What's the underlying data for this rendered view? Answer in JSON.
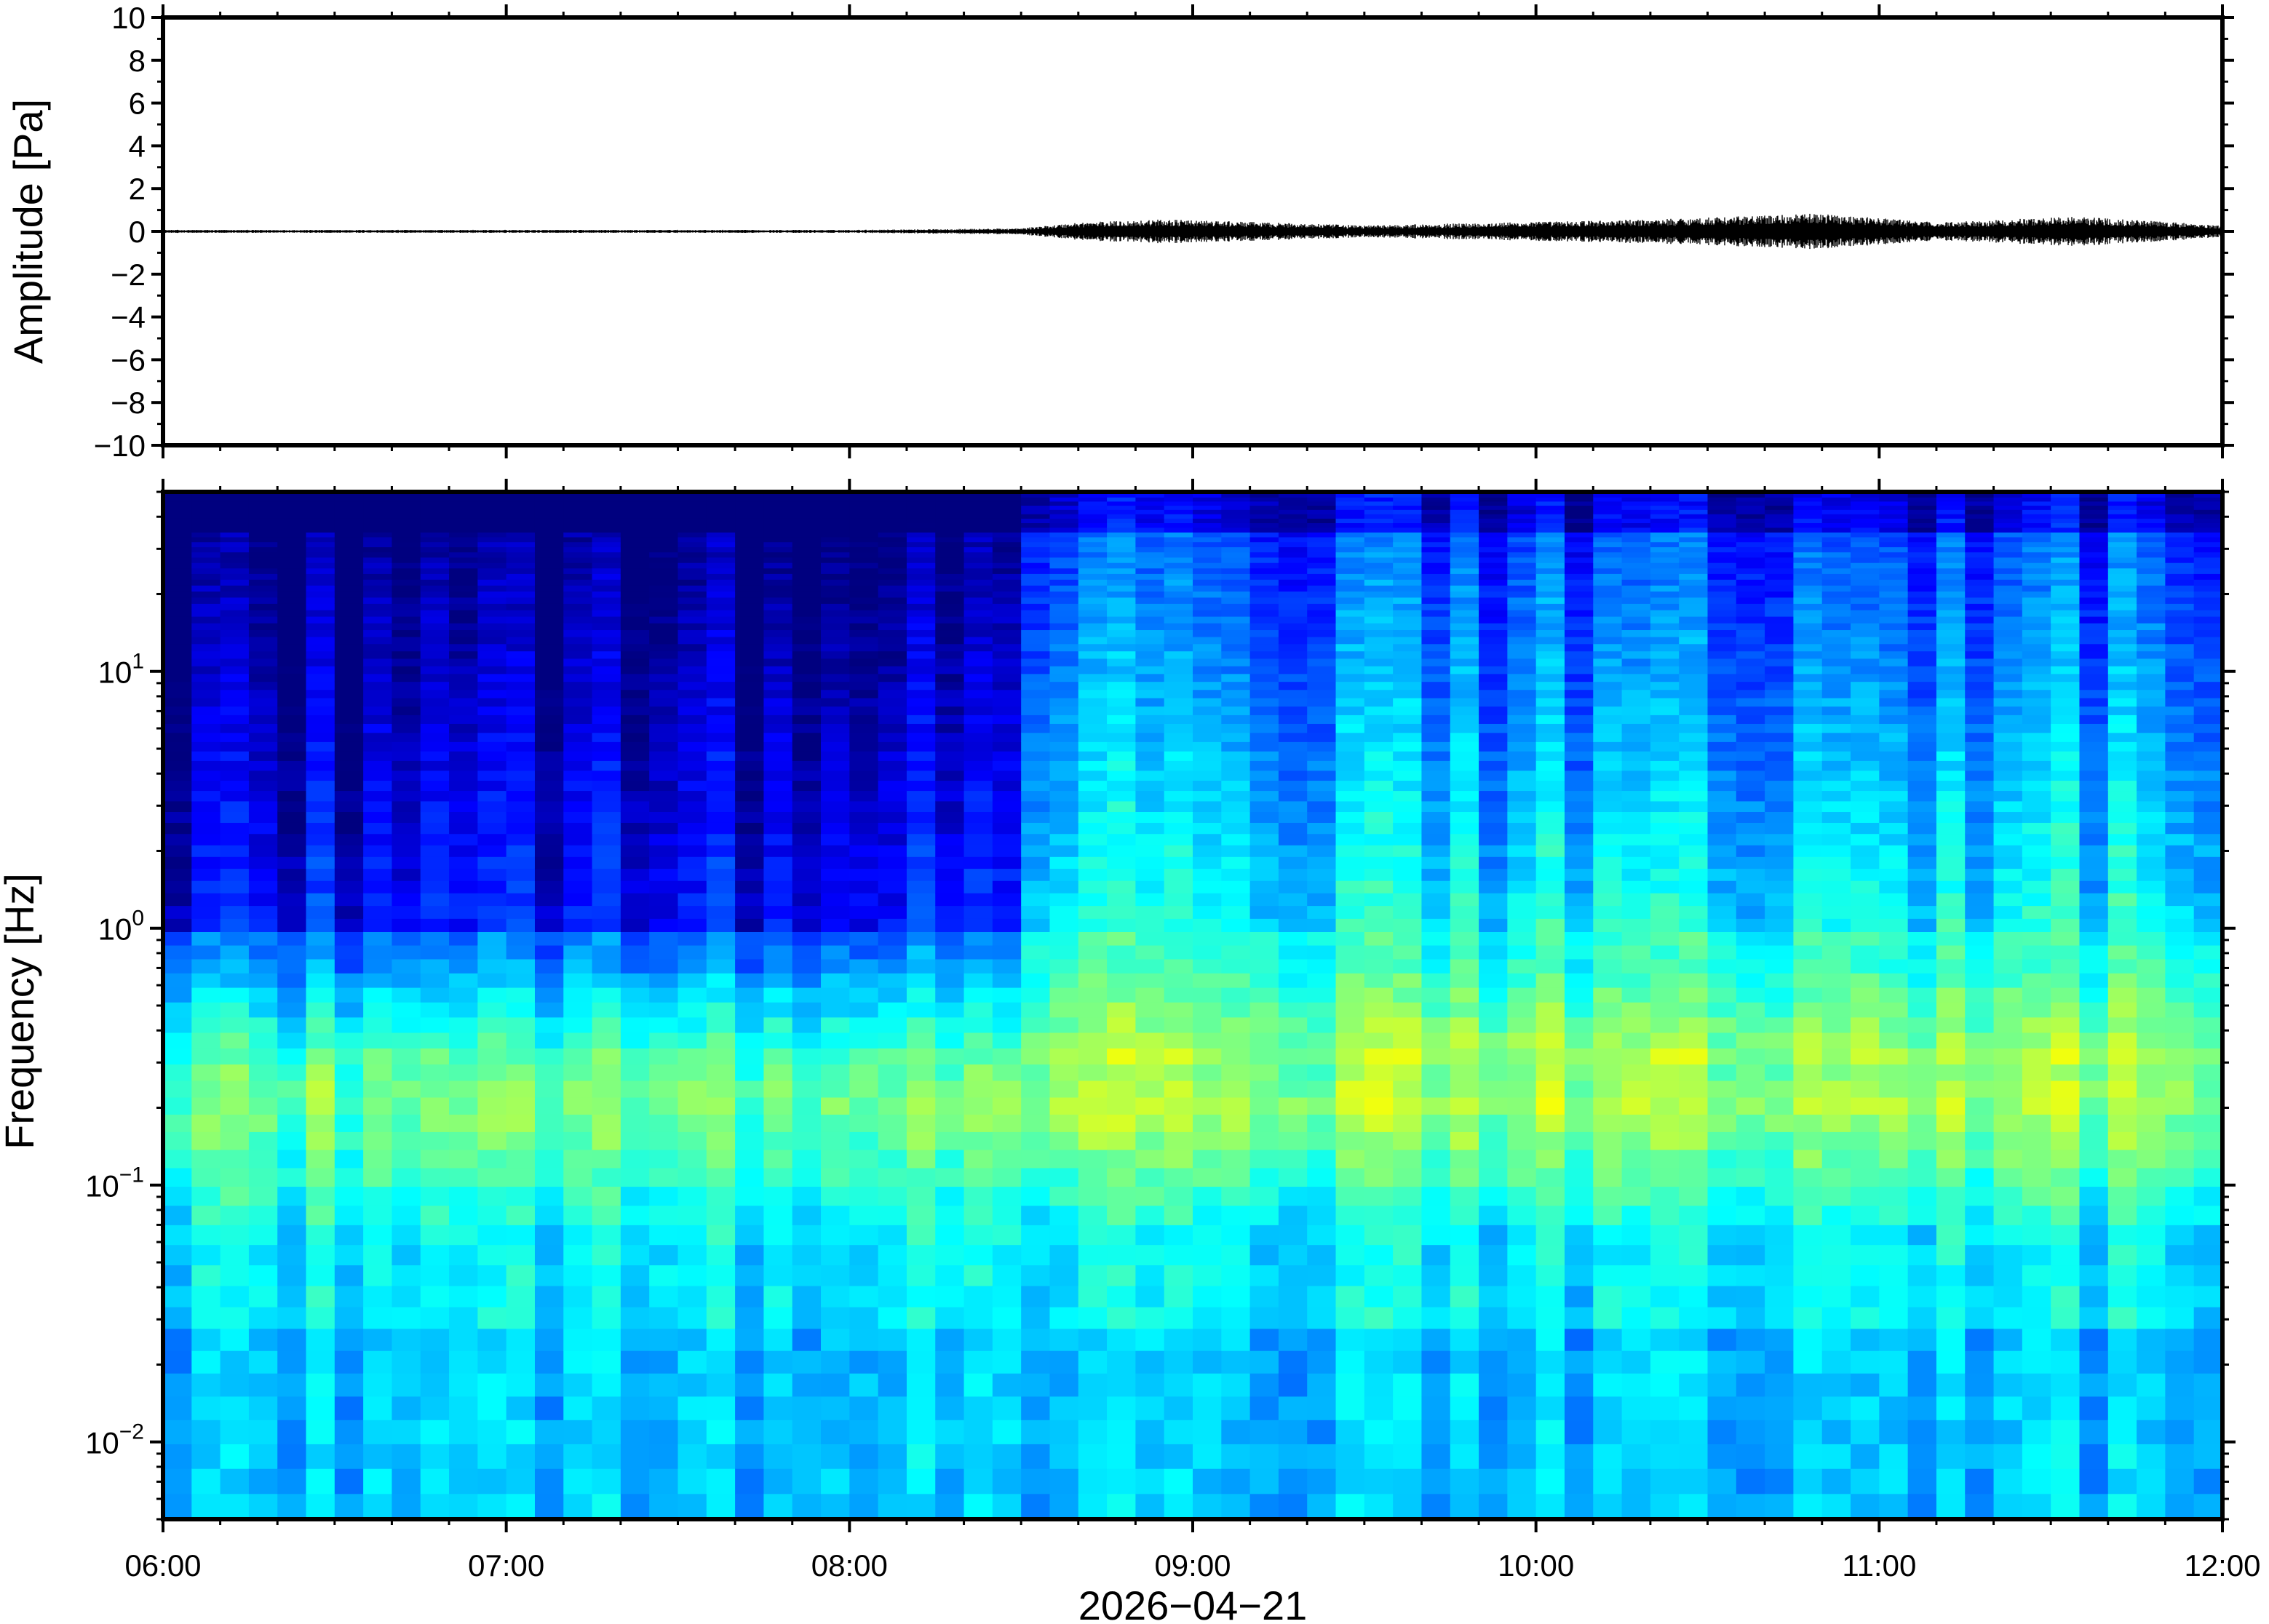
{
  "chart_data": [
    {
      "type": "line",
      "panel": "waveform",
      "ylabel": "Amplitude [Pa]",
      "ylim": [
        -10,
        10
      ],
      "y_ticks": [
        "10",
        "8",
        "6",
        "4",
        "2",
        "0",
        "−2",
        "−4",
        "−6",
        "−8",
        "−10"
      ],
      "x_range": [
        "06:00",
        "12:00"
      ],
      "grid": false,
      "series": [
        {
          "color": "#000000",
          "envelope_pa": [
            {
              "t": "06:00",
              "amp": 0.05
            },
            {
              "t": "07:00",
              "amp": 0.05
            },
            {
              "t": "08:00",
              "amp": 0.05
            },
            {
              "t": "08:30",
              "amp": 0.1
            },
            {
              "t": "08:40",
              "amp": 0.3
            },
            {
              "t": "08:55",
              "amp": 0.4
            },
            {
              "t": "09:30",
              "amp": 0.2
            },
            {
              "t": "10:20",
              "amp": 0.4
            },
            {
              "t": "10:35",
              "amp": 0.5
            },
            {
              "t": "10:50",
              "amp": 0.6
            },
            {
              "t": "11:10",
              "amp": 0.3
            },
            {
              "t": "11:35",
              "amp": 0.5
            },
            {
              "t": "12:00",
              "amp": 0.2
            }
          ]
        }
      ]
    },
    {
      "type": "heatmap",
      "panel": "spectrogram",
      "xlabel": "2026−04−21",
      "ylabel": "Frequency [Hz]",
      "y_scale": "log",
      "ylim_hz": [
        0.005,
        50
      ],
      "y_tick_labels": [
        {
          "base": "10",
          "exp": "1",
          "value": 10
        },
        {
          "base": "10",
          "exp": "0",
          "value": 1
        },
        {
          "base": "10",
          "exp": "−1",
          "value": 0.1
        },
        {
          "base": "10",
          "exp": "−2",
          "value": 0.01
        }
      ],
      "x_tick_labels": [
        "06:00",
        "07:00",
        "08:00",
        "09:00",
        "10:00",
        "11:00",
        "12:00"
      ],
      "colormap": [
        "#00007f",
        "#0000ff",
        "#007fff",
        "#00ffff",
        "#7fff7f",
        "#ffff00",
        "#ff7f00"
      ],
      "description_regimes": [
        {
          "from": "06:00",
          "to": "08:28",
          "high_freq_energy": "low"
        },
        {
          "from": "08:28",
          "to": "12:00",
          "high_freq_energy": "elevated"
        }
      ],
      "microbarom_band_hz": [
        0.15,
        0.3
      ]
    }
  ]
}
